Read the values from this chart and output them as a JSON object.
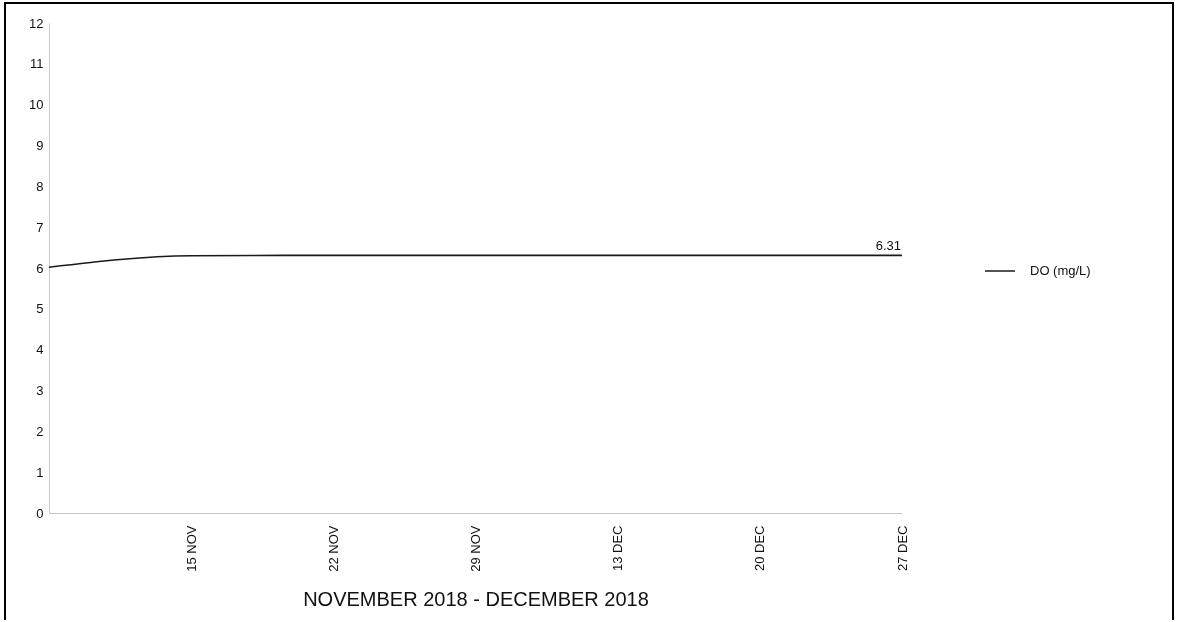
{
  "chart_data": {
    "type": "line",
    "xlabel": "NOVEMBER 2018 - DECEMBER 2018",
    "categories": [
      null,
      "15 NOV",
      "22 NOV",
      "29 NOV",
      "13 DEC",
      "20 DEC",
      "27 DEC"
    ],
    "series": [
      {
        "name": "DO (mg/L)",
        "color": "#1a1a1a",
        "values": [
          6.02,
          6.3,
          6.31,
          6.31,
          6.31,
          6.31,
          6.31
        ],
        "value_labels": [
          null,
          null,
          null,
          null,
          null,
          null,
          "6.31"
        ]
      }
    ],
    "ylim": [
      0,
      12
    ],
    "yticks": [
      0,
      1,
      2,
      3,
      4,
      5,
      6,
      7,
      8,
      9,
      10,
      11,
      12
    ],
    "grid": false,
    "legend": "right",
    "marker": "none",
    "line_style": "solid"
  }
}
